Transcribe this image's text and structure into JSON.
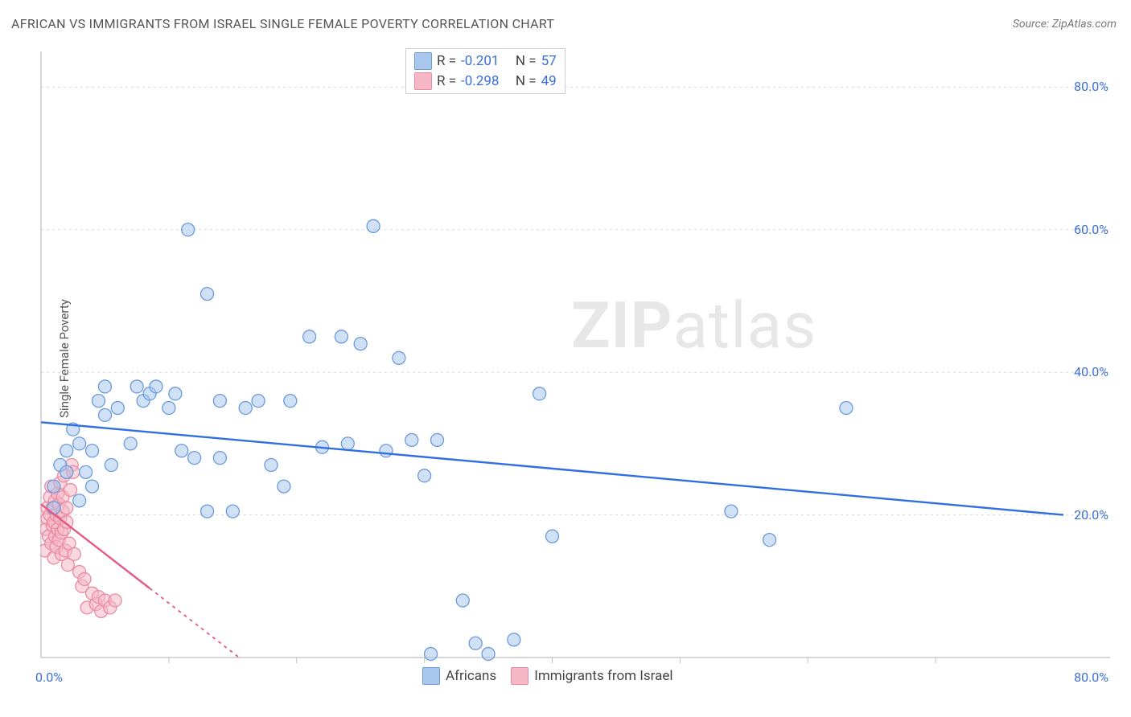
{
  "title": "AFRICAN VS IMMIGRANTS FROM ISRAEL SINGLE FEMALE POVERTY CORRELATION CHART",
  "source_label": "Source:",
  "source_name": "ZipAtlas.com",
  "y_axis_label": "Single Female Poverty",
  "watermark": {
    "bold": "ZIP",
    "rest": "atlas"
  },
  "chart": {
    "type": "scatter",
    "xlim": [
      0,
      80
    ],
    "ylim": [
      0,
      85
    ],
    "x_origin_label": "0.0%",
    "x_max_label": "80.0%",
    "y_grid_ticks": [
      20,
      40,
      60,
      80
    ],
    "y_tick_labels": [
      "20.0%",
      "40.0%",
      "60.0%",
      "80.0%"
    ],
    "x_minor_ticks": [
      10,
      20,
      30,
      40,
      50,
      60,
      70
    ],
    "background_color": "#ffffff",
    "grid_color": "#d9d9d9",
    "axis_color": "#bfbfbf",
    "marker_radius": 8,
    "marker_opacity": 0.55,
    "line_width": 2.4,
    "series": [
      {
        "key": "africans",
        "label": "Africans",
        "fill": "#a9c6ec",
        "stroke": "#6a9bdc",
        "R": "-0.201",
        "N": "57",
        "trend": {
          "x1": 0,
          "y1": 33,
          "x2": 80,
          "y2": 20,
          "color": "#2f6fe0",
          "dash": null
        },
        "points": [
          [
            1,
            21
          ],
          [
            1,
            24
          ],
          [
            1.5,
            27
          ],
          [
            2,
            29
          ],
          [
            2,
            26
          ],
          [
            2.5,
            32
          ],
          [
            3,
            22
          ],
          [
            3,
            30
          ],
          [
            3.5,
            26
          ],
          [
            4,
            24
          ],
          [
            4,
            29
          ],
          [
            4.5,
            36
          ],
          [
            5,
            38
          ],
          [
            5,
            34
          ],
          [
            5.5,
            27
          ],
          [
            6,
            35
          ],
          [
            7,
            30
          ],
          [
            7.5,
            38
          ],
          [
            8,
            36
          ],
          [
            8.5,
            37
          ],
          [
            9,
            38
          ],
          [
            10,
            35
          ],
          [
            10.5,
            37
          ],
          [
            11,
            29
          ],
          [
            11.5,
            60
          ],
          [
            12,
            28
          ],
          [
            13,
            51
          ],
          [
            13,
            20.5
          ],
          [
            14,
            36
          ],
          [
            14,
            28
          ],
          [
            15,
            20.5
          ],
          [
            16,
            35
          ],
          [
            17,
            36
          ],
          [
            18,
            27
          ],
          [
            19,
            24
          ],
          [
            19.5,
            36
          ],
          [
            21,
            45
          ],
          [
            22,
            29.5
          ],
          [
            23.5,
            45
          ],
          [
            24,
            30
          ],
          [
            25,
            44
          ],
          [
            26,
            60.5
          ],
          [
            27,
            29
          ],
          [
            28,
            42
          ],
          [
            29,
            30.5
          ],
          [
            30,
            25.5
          ],
          [
            30.5,
            0.5
          ],
          [
            31,
            30.5
          ],
          [
            33,
            8
          ],
          [
            34,
            2
          ],
          [
            35,
            0.5
          ],
          [
            37,
            2.5
          ],
          [
            39,
            37
          ],
          [
            40,
            17
          ],
          [
            54,
            20.5
          ],
          [
            57,
            16.5
          ],
          [
            63,
            35
          ]
        ]
      },
      {
        "key": "immigrants",
        "label": "Immigrants from Israel",
        "fill": "#f6b8c7",
        "stroke": "#e88aa3",
        "R": "-0.298",
        "N": "49",
        "trend": {
          "x1": 0,
          "y1": 21.5,
          "x2": 15.5,
          "y2": 0,
          "color": "#e35a82",
          "dash": "4 5",
          "dash_after_x": 8.5
        },
        "points": [
          [
            0.3,
            15
          ],
          [
            0.4,
            18
          ],
          [
            0.5,
            19.5
          ],
          [
            0.5,
            21
          ],
          [
            0.6,
            17
          ],
          [
            0.7,
            20
          ],
          [
            0.7,
            22.5
          ],
          [
            0.8,
            16
          ],
          [
            0.8,
            24
          ],
          [
            0.9,
            18.5
          ],
          [
            0.9,
            21
          ],
          [
            1.0,
            14
          ],
          [
            1.0,
            19
          ],
          [
            1.1,
            17
          ],
          [
            1.1,
            22
          ],
          [
            1.2,
            15.5
          ],
          [
            1.2,
            20
          ],
          [
            1.3,
            23
          ],
          [
            1.3,
            18
          ],
          [
            1.4,
            16.5
          ],
          [
            1.4,
            21.5
          ],
          [
            1.5,
            24.5
          ],
          [
            1.5,
            19.5
          ],
          [
            1.6,
            14.5
          ],
          [
            1.6,
            17.5
          ],
          [
            1.7,
            20.5
          ],
          [
            1.7,
            22.5
          ],
          [
            1.8,
            25.5
          ],
          [
            1.8,
            18
          ],
          [
            1.9,
            15
          ],
          [
            2.0,
            19
          ],
          [
            2.0,
            21
          ],
          [
            2.1,
            13
          ],
          [
            2.2,
            16
          ],
          [
            2.3,
            23.5
          ],
          [
            2.4,
            27
          ],
          [
            2.5,
            26
          ],
          [
            2.6,
            14.5
          ],
          [
            3.0,
            12
          ],
          [
            3.2,
            10
          ],
          [
            3.4,
            11
          ],
          [
            3.6,
            7
          ],
          [
            4.0,
            9
          ],
          [
            4.3,
            7.5
          ],
          [
            4.5,
            8.5
          ],
          [
            4.7,
            6.5
          ],
          [
            5.0,
            8
          ],
          [
            5.4,
            7
          ],
          [
            5.8,
            8
          ]
        ]
      }
    ]
  },
  "legend_top_layout": {
    "r_label": "R  =",
    "n_label": "N  ="
  }
}
